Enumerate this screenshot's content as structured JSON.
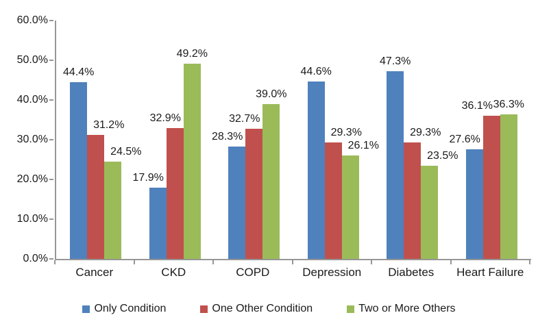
{
  "chart_data": {
    "type": "bar",
    "title": "",
    "xlabel": "",
    "ylabel": "",
    "categories": [
      "Cancer",
      "CKD",
      "COPD",
      "Depression",
      "Diabetes",
      "Heart Failure"
    ],
    "series": [
      {
        "name": "Only Condition",
        "color": "#4F81BD",
        "values": [
          44.4,
          17.9,
          28.3,
          44.6,
          47.3,
          27.6
        ]
      },
      {
        "name": "One Other Condition",
        "color": "#C0504D",
        "values": [
          31.2,
          32.9,
          32.7,
          29.3,
          29.3,
          36.1
        ]
      },
      {
        "name": "Two or More Others",
        "color": "#9BBB59",
        "values": [
          24.5,
          49.2,
          39.0,
          26.1,
          23.5,
          36.3
        ]
      }
    ],
    "ylim": [
      0,
      60
    ],
    "y_ticks": [
      "0.0%",
      "10.0%",
      "20.0%",
      "30.0%",
      "40.0%",
      "50.0%",
      "60.0%"
    ],
    "data_label_suffix": "%",
    "grid": "off",
    "legend_position": "bottom",
    "axis_color": "#969696"
  }
}
